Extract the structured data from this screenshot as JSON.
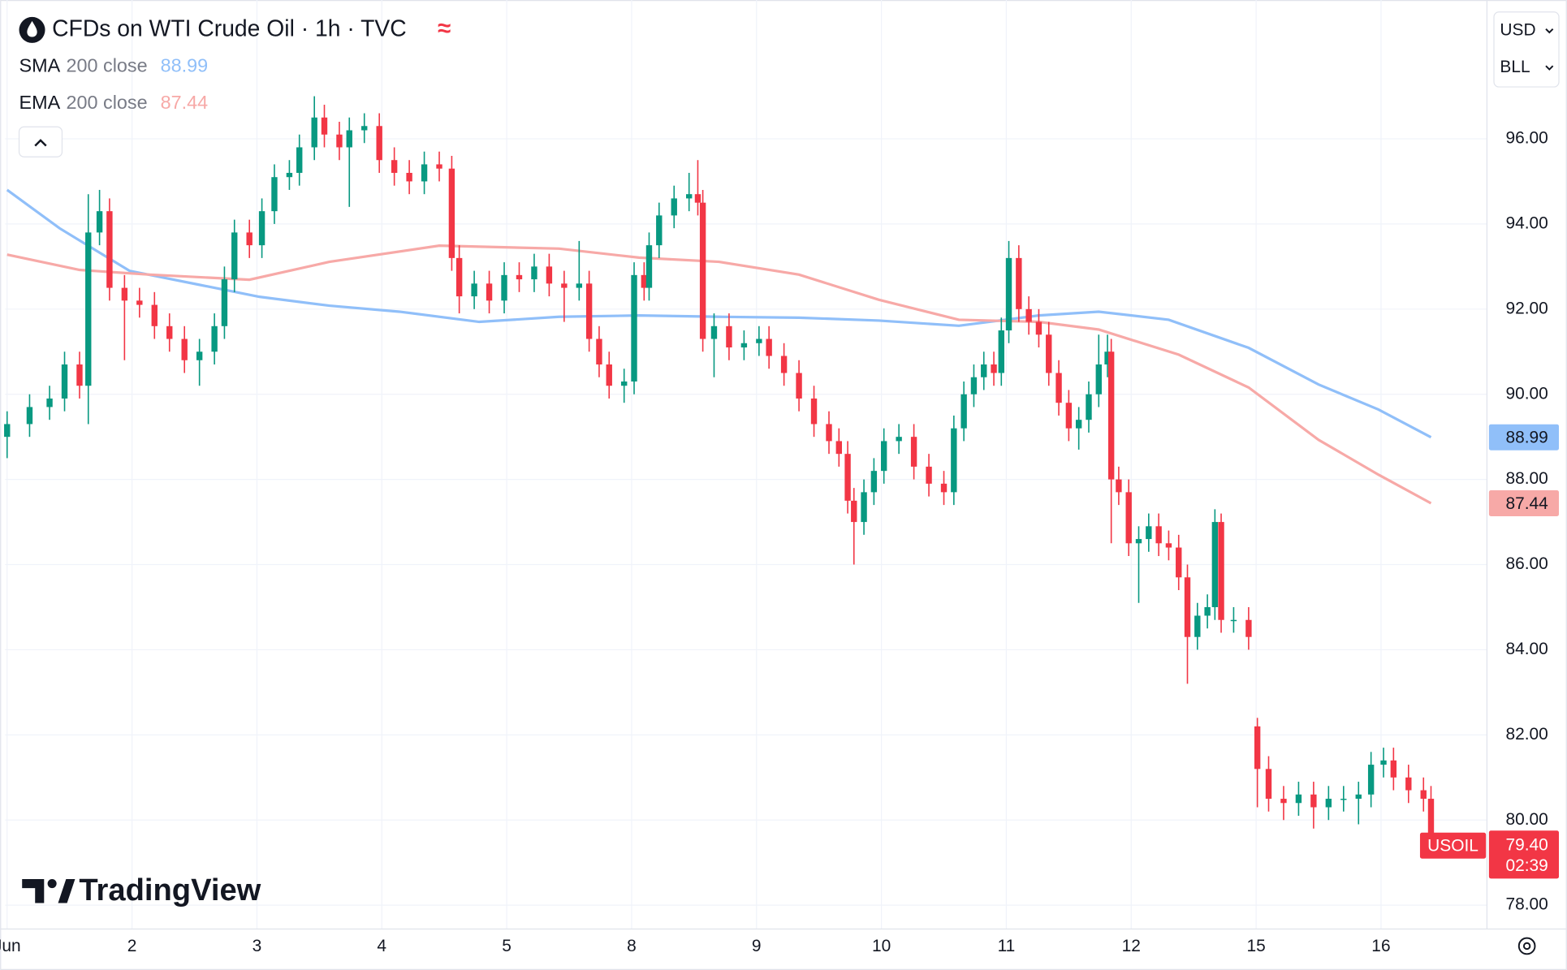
{
  "chart_data": {
    "type": "candlestick",
    "title": "CFDs on WTI Crude Oil · 1h · TVC",
    "up_color": "#089981",
    "down_color": "#f23645",
    "grid": true,
    "xlim": [
      -0.016,
      11.848
    ],
    "ylim": [
      77.44,
      99.26
    ],
    "xticks": [
      {
        "value": 0,
        "label": "Jun"
      },
      {
        "value": 1,
        "label": "2"
      },
      {
        "value": 2,
        "label": "3"
      },
      {
        "value": 3,
        "label": "4"
      },
      {
        "value": 4,
        "label": "5"
      },
      {
        "value": 5,
        "label": "8"
      },
      {
        "value": 6,
        "label": "9"
      },
      {
        "value": 7,
        "label": "10"
      },
      {
        "value": 8,
        "label": "11"
      },
      {
        "value": 9,
        "label": "12"
      },
      {
        "value": 10,
        "label": "15"
      },
      {
        "value": 11,
        "label": "16"
      }
    ],
    "yticks": [
      {
        "value": 78,
        "label": "78.00"
      },
      {
        "value": 80,
        "label": "80.00"
      },
      {
        "value": 82,
        "label": "82.00"
      },
      {
        "value": 84,
        "label": "84.00"
      },
      {
        "value": 86,
        "label": "86.00"
      },
      {
        "value": 88,
        "label": "88.00"
      },
      {
        "value": 90,
        "label": "90.00"
      },
      {
        "value": 92,
        "label": "92.00"
      },
      {
        "value": 94,
        "label": "94.00"
      },
      {
        "value": 96,
        "label": "96.00"
      }
    ],
    "x": [
      0.0,
      0.18,
      0.34,
      0.46,
      0.58,
      0.65,
      0.74,
      0.82,
      0.94,
      1.06,
      1.18,
      1.3,
      1.42,
      1.54,
      1.66,
      1.74,
      1.82,
      1.94,
      2.04,
      2.14,
      2.26,
      2.34,
      2.46,
      2.54,
      2.66,
      2.74,
      2.86,
      2.98,
      3.1,
      3.22,
      3.34,
      3.46,
      3.56,
      3.62,
      3.74,
      3.86,
      3.98,
      4.1,
      4.22,
      4.34,
      4.46,
      4.58,
      4.66,
      4.74,
      4.82,
      4.94,
      5.02,
      5.1,
      5.14,
      5.22,
      5.34,
      5.46,
      5.53,
      5.57,
      5.66,
      5.78,
      5.9,
      6.02,
      6.1,
      6.22,
      6.34,
      6.46,
      6.58,
      6.66,
      6.73,
      6.78,
      6.86,
      6.94,
      7.02,
      7.14,
      7.26,
      7.38,
      7.5,
      7.58,
      7.66,
      7.74,
      7.82,
      7.9,
      7.96,
      8.02,
      8.1,
      8.18,
      8.26,
      8.34,
      8.42,
      8.5,
      8.58,
      8.66,
      8.74,
      8.81,
      8.84,
      8.9,
      8.98,
      9.06,
      9.14,
      9.22,
      9.3,
      9.38,
      9.45,
      9.53,
      9.61,
      9.67,
      9.72,
      9.82,
      9.94,
      10.01,
      10.1,
      10.22,
      10.34,
      10.46,
      10.58,
      10.7,
      10.82,
      10.92,
      11.02,
      11.1,
      11.22,
      11.34,
      11.4
    ],
    "open": [
      89.0,
      89.3,
      89.7,
      89.9,
      90.7,
      90.2,
      93.8,
      94.3,
      92.5,
      92.2,
      92.1,
      91.6,
      91.3,
      90.8,
      91.0,
      91.6,
      92.7,
      93.8,
      93.5,
      94.3,
      95.1,
      95.2,
      95.8,
      96.5,
      96.1,
      95.8,
      96.2,
      96.3,
      95.5,
      95.2,
      95.0,
      95.4,
      95.3,
      93.2,
      92.3,
      92.6,
      92.2,
      92.8,
      92.7,
      93.0,
      92.6,
      92.5,
      92.6,
      91.3,
      90.7,
      90.2,
      90.3,
      92.8,
      92.5,
      93.5,
      94.2,
      94.6,
      94.7,
      94.5,
      91.3,
      91.6,
      91.1,
      91.2,
      91.3,
      90.9,
      90.5,
      89.9,
      89.3,
      88.9,
      88.6,
      87.5,
      87.0,
      87.7,
      88.2,
      88.9,
      89.0,
      88.3,
      87.9,
      87.7,
      89.2,
      90.0,
      90.4,
      90.7,
      90.5,
      91.5,
      93.2,
      92.0,
      91.7,
      91.4,
      90.5,
      89.8,
      89.2,
      89.4,
      90.0,
      90.7,
      91.0,
      88.0,
      87.7,
      86.5,
      86.6,
      86.9,
      86.5,
      86.4,
      85.7,
      84.3,
      84.8,
      85.0,
      87.0,
      84.7,
      84.7,
      82.2,
      81.2,
      80.5,
      80.4,
      80.6,
      80.3,
      80.5,
      80.5,
      80.6,
      81.3,
      81.4,
      81.0,
      80.7,
      80.5
    ],
    "high": [
      89.6,
      90.0,
      90.2,
      91.0,
      91.0,
      94.7,
      94.8,
      94.6,
      92.8,
      92.5,
      92.4,
      91.9,
      91.6,
      91.3,
      91.9,
      93.0,
      94.1,
      94.1,
      94.6,
      95.4,
      95.5,
      96.1,
      97.0,
      96.8,
      96.4,
      96.5,
      96.6,
      96.6,
      95.8,
      95.5,
      95.7,
      95.7,
      95.6,
      93.5,
      92.9,
      92.9,
      93.1,
      93.1,
      93.3,
      93.3,
      92.9,
      93.6,
      92.9,
      91.6,
      91.0,
      90.6,
      93.1,
      93.1,
      93.8,
      94.5,
      94.9,
      95.2,
      95.5,
      94.8,
      91.9,
      91.9,
      91.5,
      91.6,
      91.6,
      91.2,
      90.8,
      90.2,
      89.6,
      89.2,
      88.9,
      87.8,
      88.0,
      88.5,
      89.2,
      89.3,
      89.3,
      88.6,
      88.2,
      89.5,
      90.3,
      90.7,
      91.0,
      91.0,
      91.8,
      93.6,
      93.5,
      92.3,
      92.0,
      91.7,
      90.8,
      90.1,
      89.7,
      90.3,
      91.4,
      91.4,
      91.3,
      88.3,
      88.0,
      86.9,
      87.2,
      87.2,
      86.8,
      86.7,
      86.0,
      85.1,
      85.3,
      87.3,
      87.2,
      85.0,
      85.0,
      82.4,
      81.5,
      80.8,
      80.9,
      80.9,
      80.8,
      80.8,
      80.9,
      81.6,
      81.7,
      81.7,
      81.3,
      81.0,
      80.8
    ],
    "low": [
      88.5,
      89.0,
      89.4,
      89.6,
      89.9,
      89.3,
      93.5,
      92.2,
      90.8,
      91.8,
      91.3,
      91.0,
      90.5,
      90.2,
      90.7,
      91.3,
      92.4,
      93.2,
      93.2,
      94.0,
      94.8,
      94.9,
      95.5,
      95.8,
      95.5,
      94.4,
      95.9,
      95.2,
      94.9,
      94.7,
      94.7,
      95.0,
      92.9,
      91.9,
      92.0,
      91.9,
      91.9,
      92.4,
      92.4,
      92.3,
      91.7,
      92.2,
      91.0,
      90.4,
      89.9,
      89.8,
      90.0,
      92.2,
      92.2,
      93.2,
      93.9,
      94.3,
      94.2,
      91.0,
      90.4,
      90.8,
      90.8,
      90.9,
      90.6,
      90.2,
      89.6,
      89.0,
      88.6,
      88.3,
      87.2,
      86.0,
      86.7,
      87.4,
      87.9,
      88.6,
      88.0,
      87.6,
      87.4,
      87.4,
      88.9,
      89.7,
      90.1,
      90.2,
      90.2,
      91.2,
      91.7,
      91.4,
      91.1,
      90.2,
      89.5,
      88.9,
      88.7,
      89.1,
      89.7,
      90.4,
      86.5,
      87.4,
      86.2,
      85.1,
      86.3,
      86.2,
      86.1,
      85.4,
      83.2,
      84.0,
      84.5,
      84.7,
      84.4,
      84.4,
      84.0,
      80.3,
      80.2,
      80.0,
      80.1,
      79.8,
      80.0,
      80.2,
      79.9,
      80.3,
      81.0,
      80.7,
      80.4,
      80.2,
      79.3
    ],
    "close": [
      89.3,
      89.7,
      89.9,
      90.7,
      90.2,
      93.8,
      94.3,
      92.5,
      92.2,
      92.1,
      91.6,
      91.3,
      90.8,
      91.0,
      91.6,
      92.7,
      93.8,
      93.5,
      94.3,
      95.1,
      95.2,
      95.8,
      96.5,
      96.1,
      95.8,
      96.2,
      96.3,
      95.5,
      95.2,
      95.0,
      95.4,
      95.3,
      93.2,
      92.3,
      92.6,
      92.2,
      92.8,
      92.7,
      93.0,
      92.6,
      92.5,
      92.6,
      91.3,
      90.7,
      90.2,
      90.3,
      92.8,
      92.5,
      93.5,
      94.2,
      94.6,
      94.7,
      94.5,
      91.3,
      91.6,
      91.1,
      91.2,
      91.3,
      90.9,
      90.5,
      89.9,
      89.3,
      88.9,
      88.6,
      87.5,
      87.0,
      87.7,
      88.2,
      88.9,
      89.0,
      88.3,
      87.9,
      87.7,
      89.2,
      90.0,
      90.4,
      90.7,
      90.5,
      91.5,
      93.2,
      92.0,
      91.7,
      91.4,
      90.5,
      89.8,
      89.2,
      89.4,
      90.0,
      90.7,
      91.0,
      88.0,
      87.7,
      86.5,
      86.6,
      86.9,
      86.5,
      86.4,
      85.7,
      84.3,
      84.8,
      85.0,
      87.0,
      84.7,
      84.7,
      84.3,
      81.2,
      80.5,
      80.4,
      80.6,
      80.3,
      80.5,
      80.5,
      80.6,
      81.3,
      81.4,
      81.0,
      80.7,
      80.5,
      79.4
    ],
    "last_price": {
      "value": 79.4,
      "label": "79.40"
    },
    "symbol": "USOIL",
    "countdown": "02:39",
    "overlays": [
      {
        "name": "SMA",
        "params": "200 close",
        "color": "#90bff9",
        "x": [
          0.0,
          0.42,
          0.98,
          1.54,
          2.02,
          2.58,
          3.14,
          3.78,
          4.42,
          5.06,
          5.7,
          6.34,
          6.98,
          7.62,
          8.26,
          8.74,
          9.3,
          9.94,
          10.5,
          10.98,
          11.4
        ],
        "values": [
          94.8,
          93.9,
          92.9,
          92.57,
          92.29,
          92.08,
          91.94,
          91.7,
          91.82,
          91.85,
          91.82,
          91.8,
          91.73,
          91.61,
          91.85,
          91.94,
          91.75,
          91.09,
          90.23,
          89.64,
          88.99
        ]
      },
      {
        "name": "EMA",
        "params": "200 close",
        "color": "#f7a9a7",
        "x": [
          0.0,
          0.58,
          1.14,
          1.94,
          2.58,
          3.46,
          4.42,
          5.06,
          5.7,
          6.34,
          6.98,
          7.62,
          8.26,
          8.74,
          9.38,
          9.94,
          10.5,
          10.98,
          11.4
        ],
        "values": [
          93.28,
          92.92,
          92.81,
          92.69,
          93.11,
          93.49,
          93.42,
          93.21,
          93.11,
          92.81,
          92.22,
          91.75,
          91.7,
          91.52,
          90.93,
          90.16,
          88.93,
          88.11,
          87.44
        ]
      }
    ]
  },
  "toolbar": {
    "currency": "USD",
    "unit": "BLL"
  },
  "branding": "TradingView"
}
